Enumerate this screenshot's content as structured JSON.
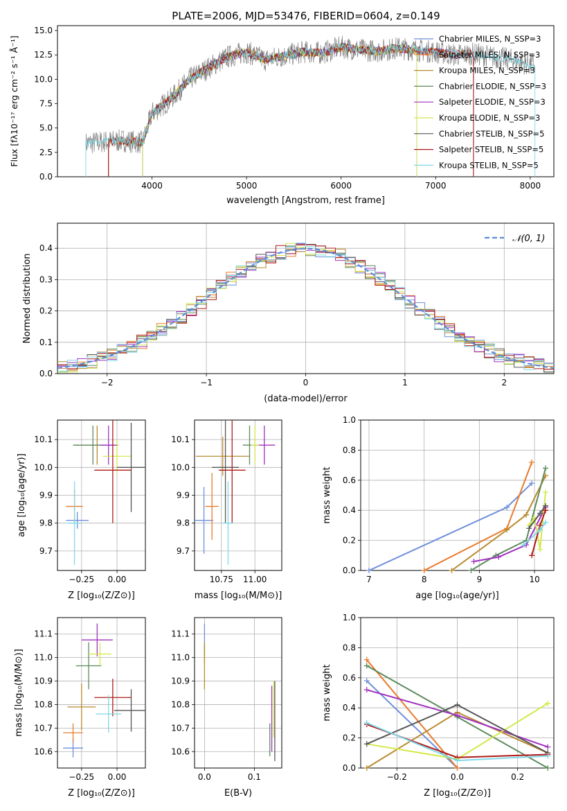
{
  "chart_data": [
    {
      "id": "spectrum",
      "type": "line",
      "title": "PLATE=2006, MJD=53476, FIBERID=0604, z=0.149",
      "xlabel": "wavelength [Angstrom, rest frame]",
      "ylabel": "Flux [fλ10⁻¹⁷ erg cm⁻² s⁻¹ Å⁻¹]",
      "xlim": [
        3000,
        8250
      ],
      "ylim": [
        0,
        15.5
      ],
      "xticks": [
        4000,
        5000,
        6000,
        7000,
        8000
      ],
      "yticks": [
        0.0,
        2.5,
        5.0,
        7.5,
        10.0,
        12.5,
        15.0
      ],
      "legend_position": "top-right",
      "grid": false,
      "series": [
        {
          "name": "Chabrier MILES, N_SSP=3",
          "color": "#6e8fdb"
        },
        {
          "name": "Salpeter MILES, N_SSP=3",
          "color": "#e87a2a"
        },
        {
          "name": "Kroupa MILES, N_SSP=3",
          "color": "#b88a2e"
        },
        {
          "name": "Chabrier ELODIE, N_SSP=3",
          "color": "#5c8a5c"
        },
        {
          "name": "Salpeter ELODIE, N_SSP=3",
          "color": "#a030c0"
        },
        {
          "name": "Kroupa ELODIE, N_SSP=3",
          "color": "#d4e84a"
        },
        {
          "name": "Chabrier STELIB, N_SSP=5",
          "color": "#555555"
        },
        {
          "name": "Salpeter STELIB, N_SSP=5",
          "color": "#b01818"
        },
        {
          "name": "Kroupa STELIB, N_SSP=5",
          "color": "#7fd8e8"
        }
      ],
      "data_envelope": {
        "x": [
          3300,
          3500,
          3700,
          3900,
          4000,
          4200,
          4400,
          4600,
          4800,
          5000,
          5200,
          5400,
          5600,
          5800,
          6000,
          6200,
          6400,
          6600,
          6800,
          7000,
          7200,
          7400,
          7600,
          7800,
          8000
        ],
        "y": [
          3.4,
          3.6,
          3.7,
          3.5,
          6.5,
          8.0,
          10.0,
          11.2,
          12.3,
          12.8,
          12.0,
          12.4,
          12.8,
          12.7,
          13.3,
          13.0,
          12.9,
          13.2,
          13.0,
          12.8,
          12.5,
          12.6,
          12.3,
          12.0,
          11.5
        ]
      }
    },
    {
      "id": "residuals",
      "type": "line",
      "xlabel": "(data-model)/error",
      "ylabel": "Normed distribution",
      "xlim": [
        -2.5,
        2.5
      ],
      "ylim": [
        0,
        0.48
      ],
      "xticks": [
        -2,
        -1,
        0,
        1,
        2
      ],
      "yticks": [
        0.0,
        0.1,
        0.2,
        0.3,
        0.4
      ],
      "grid": true,
      "legend": "𝒩(0, 1)",
      "legend_position": "top-right",
      "bin_width": 0.1
    },
    {
      "id": "age-vs-Z",
      "type": "scatter",
      "xlabel": "Z [log₁₀(Z/Z⊙)]",
      "ylabel": "age  [log₁₀(age/yr)]",
      "xlim": [
        -0.42,
        0.2
      ],
      "ylim": [
        9.63,
        10.17
      ],
      "xticks": [
        -0.25,
        0.0
      ],
      "xtick_labels": [
        "−0.25",
        "0.00"
      ],
      "yticks": [
        9.7,
        9.8,
        9.9,
        10.0,
        10.1
      ],
      "grid": true,
      "points": [
        {
          "x": -0.28,
          "y": 9.81,
          "xerr": 0.08,
          "yerr": 0.03
        },
        {
          "x": -0.3,
          "y": 9.86,
          "xerr": 0.06,
          "yerr": 0.06
        },
        {
          "x": -0.14,
          "y": 10.08,
          "xerr": 0.15,
          "yerr": 0.07
        },
        {
          "x": -0.17,
          "y": 10.08,
          "xerr": 0.14,
          "yerr": 0.07
        },
        {
          "x": -0.06,
          "y": 10.08,
          "xerr": 0.06,
          "yerr": 0.07
        },
        {
          "x": 0.0,
          "y": 10.04,
          "xerr": 0.1,
          "yerr": 0.06
        },
        {
          "x": 0.1,
          "y": 10.0,
          "xerr": 0.1,
          "yerr": 0.16
        },
        {
          "x": -0.03,
          "y": 9.99,
          "xerr": 0.13,
          "yerr": 0.19
        },
        {
          "x": -0.3,
          "y": 9.8,
          "xerr": 0.05,
          "yerr": 0.15
        }
      ]
    },
    {
      "id": "age-vs-mass",
      "type": "scatter",
      "xlabel": "mass [log₁₀(M/M⊙)]",
      "xlim": [
        10.55,
        11.2
      ],
      "ylim": [
        9.63,
        10.17
      ],
      "xticks": [
        10.75,
        11.0
      ],
      "xtick_labels": [
        "10.75",
        "11.00"
      ],
      "yticks": [
        9.7,
        9.8,
        9.9,
        10.0,
        10.1
      ],
      "grid": true,
      "points": [
        {
          "x": 10.62,
          "y": 9.81,
          "xerr": 0.07,
          "yerr": 0.12
        },
        {
          "x": 10.68,
          "y": 9.86,
          "xerr": 0.05,
          "yerr": 0.12
        },
        {
          "x": 10.76,
          "y": 10.04,
          "xerr": 0.2,
          "yerr": 0.07
        },
        {
          "x": 10.96,
          "y": 10.08,
          "xerr": 0.05,
          "yerr": 0.07
        },
        {
          "x": 11.07,
          "y": 10.08,
          "xerr": 0.08,
          "yerr": 0.07
        },
        {
          "x": 11.0,
          "y": 10.08,
          "xerr": 0.03,
          "yerr": 0.07
        },
        {
          "x": 10.78,
          "y": 10.0,
          "xerr": 0.1,
          "yerr": 0.2
        },
        {
          "x": 10.83,
          "y": 9.99,
          "xerr": 0.1,
          "yerr": 0.19
        },
        {
          "x": 10.8,
          "y": 9.8,
          "xerr": 0.04,
          "yerr": 0.15
        }
      ]
    },
    {
      "id": "weight-vs-age",
      "type": "line",
      "xlabel": "age  [log₁₀(age/yr)]",
      "ylabel": "mass weight",
      "xlim": [
        6.85,
        10.35
      ],
      "ylim": [
        0,
        1.0
      ],
      "xticks": [
        7,
        8,
        9,
        10
      ],
      "yticks": [
        0.0,
        0.2,
        0.4,
        0.6,
        0.8,
        1.0
      ],
      "grid": true,
      "series": [
        {
          "x": [
            7.0,
            9.5,
            9.95
          ],
          "y": [
            0.0,
            0.42,
            0.58
          ]
        },
        {
          "x": [
            8.0,
            9.5,
            9.95
          ],
          "y": [
            0.0,
            0.28,
            0.72
          ]
        },
        {
          "x": [
            8.5,
            9.5,
            9.85,
            10.2
          ],
          "y": [
            0.0,
            0.27,
            0.37,
            0.63
          ]
        },
        {
          "x": [
            8.85,
            9.3,
            9.85,
            10.2
          ],
          "y": [
            0.0,
            0.1,
            0.2,
            0.68
          ]
        },
        {
          "x": [
            8.9,
            9.35,
            9.85,
            10.2
          ],
          "y": [
            0.06,
            0.09,
            0.17,
            0.42
          ]
        },
        {
          "x": [
            9.9,
            10.0,
            10.1,
            10.2
          ],
          "y": [
            0.3,
            0.35,
            0.14,
            0.52
          ]
        },
        {
          "x": [
            9.9,
            10.1,
            10.2
          ],
          "y": [
            0.28,
            0.38,
            0.43
          ]
        },
        {
          "x": [
            9.95,
            10.1,
            10.2
          ],
          "y": [
            0.1,
            0.3,
            0.4
          ]
        },
        {
          "x": [
            9.8,
            10.1,
            10.2
          ],
          "y": [
            0.17,
            0.27,
            0.32
          ]
        }
      ]
    },
    {
      "id": "mass-vs-Z",
      "type": "scatter",
      "xlabel": "Z [log₁₀(Z/Z⊙)]",
      "ylabel": "mass [log₁₀(M/M⊙)]",
      "xlim": [
        -0.42,
        0.2
      ],
      "ylim": [
        10.53,
        11.17
      ],
      "xticks": [
        -0.25,
        0.0
      ],
      "xtick_labels": [
        "−0.25",
        "0.00"
      ],
      "yticks": [
        10.6,
        10.7,
        10.8,
        10.9,
        11.0,
        11.1
      ],
      "grid": true,
      "points": [
        {
          "x": -0.31,
          "y": 10.615,
          "xerr": 0.07,
          "yerr": 0.04
        },
        {
          "x": -0.31,
          "y": 10.68,
          "xerr": 0.07,
          "yerr": 0.04
        },
        {
          "x": -0.25,
          "y": 10.79,
          "xerr": 0.1,
          "yerr": 0.1
        },
        {
          "x": -0.2,
          "y": 10.965,
          "xerr": 0.09,
          "yerr": 0.1
        },
        {
          "x": -0.14,
          "y": 11.075,
          "xerr": 0.11,
          "yerr": 0.07
        },
        {
          "x": -0.12,
          "y": 11.015,
          "xerr": 0.08,
          "yerr": 0.05
        },
        {
          "x": 0.1,
          "y": 10.775,
          "xerr": 0.12,
          "yerr": 0.09
        },
        {
          "x": -0.03,
          "y": 10.83,
          "xerr": 0.13,
          "yerr": 0.08
        },
        {
          "x": -0.06,
          "y": 10.76,
          "xerr": 0.09,
          "yerr": 0.08
        }
      ]
    },
    {
      "id": "mass-vs-ebv",
      "type": "scatter",
      "xlabel": "E(B-V)",
      "xlim": [
        -0.02,
        0.155
      ],
      "ylim": [
        10.53,
        11.17
      ],
      "xticks": [
        0.0,
        0.1
      ],
      "xtick_labels": [
        "0.0",
        "0.1"
      ],
      "yticks": [
        10.6,
        10.7,
        10.8,
        10.9,
        11.0,
        11.1
      ],
      "grid": true,
      "points": [
        {
          "x": 0.0,
          "y": 11.075,
          "yerr": 0.07
        },
        {
          "x": 0.0,
          "y": 11.015,
          "yerr": 0.04
        },
        {
          "x": 0.0,
          "y": 10.965,
          "yerr": 0.1
        },
        {
          "x": 0.131,
          "y": 10.65,
          "yerr": 0.07
        },
        {
          "x": 0.135,
          "y": 10.74,
          "yerr": 0.14
        },
        {
          "x": 0.139,
          "y": 10.78,
          "yerr": 0.12
        },
        {
          "x": 0.141,
          "y": 10.73,
          "yerr": 0.17
        }
      ]
    },
    {
      "id": "weight-vs-Z",
      "type": "line",
      "xlabel": "Z [log₁₀(Z/Z⊙)]",
      "ylabel": "mass weight",
      "xlim": [
        -0.32,
        0.32
      ],
      "ylim": [
        0,
        1.0
      ],
      "xticks": [
        -0.2,
        0.0,
        0.2
      ],
      "xtick_labels": [
        "−0.2",
        "0.0",
        "0.2"
      ],
      "yticks": [
        0.0,
        0.2,
        0.4,
        0.6,
        0.8,
        1.0
      ],
      "grid": true,
      "series": [
        {
          "x": [
            -0.3,
            0.0
          ],
          "y": [
            0.58,
            0.0
          ]
        },
        {
          "x": [
            -0.3,
            0.0
          ],
          "y": [
            0.72,
            0.0
          ]
        },
        {
          "x": [
            -0.3,
            0.0,
            0.3
          ],
          "y": [
            0.0,
            0.37,
            0.1
          ]
        },
        {
          "x": [
            -0.3,
            0.0,
            0.3
          ],
          "y": [
            0.68,
            0.34,
            0.0
          ]
        },
        {
          "x": [
            -0.3,
            0.0,
            0.3
          ],
          "y": [
            0.52,
            0.35,
            0.14
          ]
        },
        {
          "x": [
            -0.3,
            0.0,
            0.3
          ],
          "y": [
            0.16,
            0.06,
            0.43
          ]
        },
        {
          "x": [
            -0.3,
            0.0,
            0.3
          ],
          "y": [
            0.16,
            0.42,
            0.1
          ]
        },
        {
          "x": [
            -0.3,
            0.0,
            0.3
          ],
          "y": [
            0.29,
            0.07,
            0.09
          ]
        },
        {
          "x": [
            -0.3,
            0.0,
            0.3
          ],
          "y": [
            0.3,
            0.05,
            0.08
          ]
        }
      ]
    }
  ]
}
